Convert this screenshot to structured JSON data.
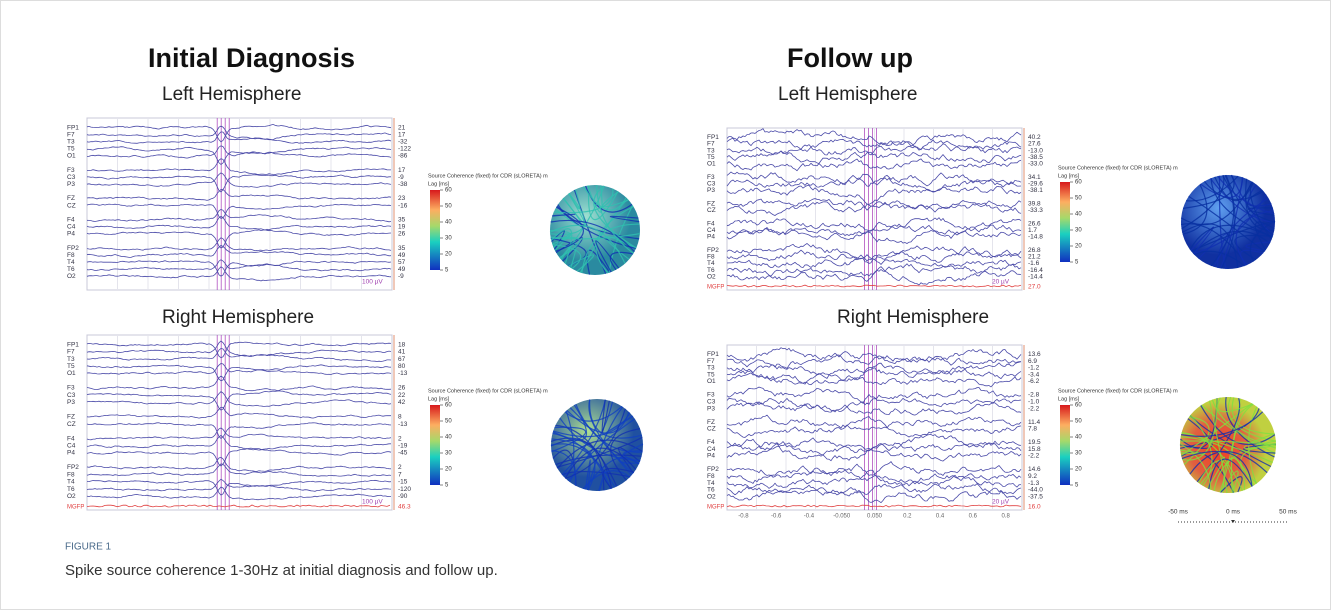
{
  "figure": {
    "label": "FIGURE 1",
    "caption": "Spike source coherence 1-30Hz at initial diagnosis and follow up."
  },
  "colorbar": {
    "title": "Source Coherence (fixed) for CDR (sLORETA) m",
    "unit": "Lag [ms]",
    "ticks": [
      "60",
      "50",
      "40",
      "30",
      "20",
      "5"
    ]
  },
  "panels": [
    {
      "title": "Initial Diagnosis",
      "views": [
        {
          "subtitle": "Left Hemisphere",
          "channels": [
            "FP1",
            "F7",
            "T3",
            "T5",
            "O1",
            "F3",
            "C3",
            "P3",
            "FZ",
            "CZ",
            "F4",
            "C4",
            "P4",
            "FP2",
            "F8",
            "T4",
            "T6",
            "O2"
          ],
          "values": [
            "21",
            "17",
            "-32",
            "-122",
            "-86",
            "17",
            "-9",
            "-38",
            "23",
            "-16",
            "35",
            "19",
            "26",
            "35",
            "49",
            "57",
            "49",
            "-9"
          ],
          "scale": "100 µV"
        },
        {
          "subtitle": "Right Hemisphere",
          "channels": [
            "FP1",
            "F7",
            "T3",
            "T5",
            "O1",
            "F3",
            "C3",
            "P3",
            "FZ",
            "CZ",
            "F4",
            "C4",
            "P4",
            "FP2",
            "F8",
            "T4",
            "T6",
            "O2"
          ],
          "values": [
            "18",
            "41",
            "67",
            "80",
            "-13",
            "26",
            "22",
            "42",
            "8",
            "-13",
            "2",
            "-19",
            "-45",
            "2",
            "7",
            "-15",
            "-120",
            "-90"
          ],
          "scale": "100 µV",
          "mgfp": {
            "label": "MGFP",
            "value": "46.3"
          }
        }
      ]
    },
    {
      "title": "Follow up",
      "views": [
        {
          "subtitle": "Left Hemisphere",
          "channels": [
            "FP1",
            "F7",
            "T3",
            "T5",
            "O1",
            "F3",
            "C3",
            "P3",
            "FZ",
            "CZ",
            "F4",
            "C4",
            "P4",
            "FP2",
            "F8",
            "T4",
            "T6",
            "O2"
          ],
          "values": [
            "40.2",
            "27.6",
            "-13.0",
            "-38.5",
            "-33.0",
            "34.1",
            "-29.6",
            "-38.1",
            "39.8",
            "-33.3",
            "26.6",
            "1.7",
            "-14.8",
            "26.8",
            "21.2",
            "-1.6",
            "-16.4",
            "-14.4"
          ],
          "scale": "20 µV",
          "mgfp": {
            "label": "MGFP",
            "value": "27.0"
          }
        },
        {
          "subtitle": "Right Hemisphere",
          "channels": [
            "FP1",
            "F7",
            "T3",
            "T5",
            "O1",
            "F3",
            "C3",
            "P3",
            "FZ",
            "CZ",
            "F4",
            "C4",
            "P4",
            "FP2",
            "F8",
            "T4",
            "T6",
            "O2"
          ],
          "values": [
            "13.6",
            "6.9",
            "-1.2",
            "-3.4",
            "-6.2",
            "-2.8",
            "-1.0",
            "-2.2",
            "11.4",
            "7.8",
            "19.5",
            "15.8",
            "-2.2",
            "14.6",
            "9.2",
            "-1.3",
            "-44.0",
            "-37.5"
          ],
          "scale": "20 µV",
          "mgfp": {
            "label": "MGFP",
            "value": "16.0"
          },
          "time_ticks": [
            "-0.8",
            "-0.6",
            "-0.4",
            "-0.050",
            "0.050",
            "0.2",
            "0.4",
            "0.6",
            "0.8"
          ],
          "lag_axis": [
            "-50 ms",
            "0 ms",
            "50 ms"
          ]
        }
      ]
    }
  ]
}
